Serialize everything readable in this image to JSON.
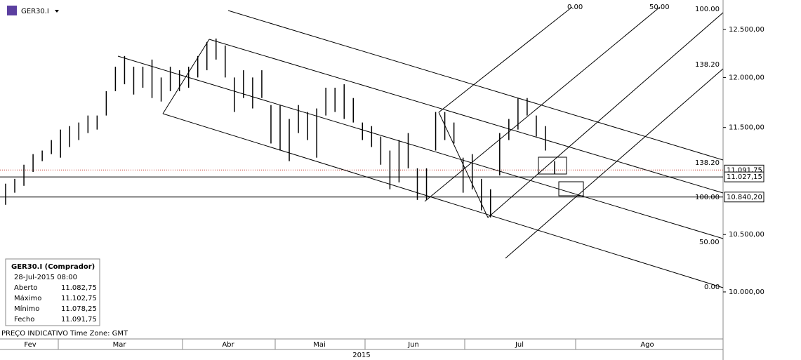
{
  "symbol": "GER30.I",
  "chart_data": {
    "type": "ohlc",
    "log_scale": true,
    "grid": false,
    "color": "#000000",
    "series": [
      {
        "name": "GER30.I",
        "high": [
          10964,
          11009,
          11142,
          11243,
          11277,
          11378,
          11480,
          11514,
          11549,
          11618,
          11618,
          11861,
          12110,
          12221,
          12110,
          12110,
          12184,
          12000,
          12110,
          12074,
          12110,
          12221,
          12368,
          12404,
          12331,
          12000,
          12074,
          12000,
          12074,
          11722,
          11722,
          11584,
          11722,
          11653,
          11688,
          11896,
          11896,
          11931,
          11792,
          11549,
          11514,
          11412,
          11277,
          11378,
          11446,
          11108,
          11108,
          11653,
          11653,
          11549,
          11209,
          11243,
          11009,
          10912,
          11446,
          11584,
          11792,
          11792,
          11618,
          11514,
          11176
        ],
        "low": [
          10769,
          10880,
          10944,
          11074,
          11176,
          11243,
          11209,
          11311,
          11378,
          11446,
          11480,
          11618,
          11861,
          11931,
          11827,
          11896,
          11792,
          11757,
          11861,
          11861,
          11896,
          12000,
          12074,
          12184,
          12000,
          11653,
          11792,
          11688,
          11792,
          11345,
          11277,
          11176,
          11446,
          11378,
          11209,
          11618,
          11653,
          11584,
          11549,
          11378,
          11311,
          11142,
          10912,
          10976,
          11108,
          10814,
          10814,
          11277,
          11378,
          11345,
          10880,
          10912,
          10718,
          10654,
          11041,
          11378,
          11480,
          11618,
          11412,
          11277,
          11054
        ]
      }
    ],
    "ylim": [
      9608,
      12817
    ],
    "yticks": [
      {
        "value": 10000,
        "label": "10.000,00"
      },
      {
        "value": 10500,
        "label": "10.500,00"
      },
      {
        "value": 11500,
        "label": "11.500,00"
      },
      {
        "value": 12000,
        "label": "12.000,00"
      },
      {
        "value": 12500,
        "label": "12.500,00"
      }
    ],
    "price_lines": [
      {
        "value": 11091.75,
        "label": "11.091,75",
        "color": "#c0392b",
        "style": "dotted"
      },
      {
        "value": 11027.15,
        "label": "11.027,15",
        "color": "#000000",
        "style": "solid"
      },
      {
        "value": 10840.2,
        "label": "10.840,20",
        "color": "#000000",
        "style": "solid"
      }
    ],
    "drawing_labels": [
      "0.00",
      "50.00",
      "100.00",
      "138.20",
      "138.20",
      "100.00",
      "50.00",
      "0.00"
    ],
    "months": [
      "Fev",
      "Mar",
      "Abr",
      "Mai",
      "Jun",
      "Jul",
      "Ago"
    ],
    "year": "2015"
  },
  "info_box": {
    "title": "GER30.I (Comprador)",
    "datetime": "28-Jul-2015 08:00",
    "rows": [
      [
        "Aberto",
        "11.082,75"
      ],
      [
        "Máximo",
        "11.102,75"
      ],
      [
        "Mínimo",
        "11.078,25"
      ],
      [
        "Fecho",
        "11.091,75"
      ]
    ]
  },
  "footer": {
    "note": "PREÇO INDICATIVO",
    "timezone": "Time Zone: GMT"
  }
}
